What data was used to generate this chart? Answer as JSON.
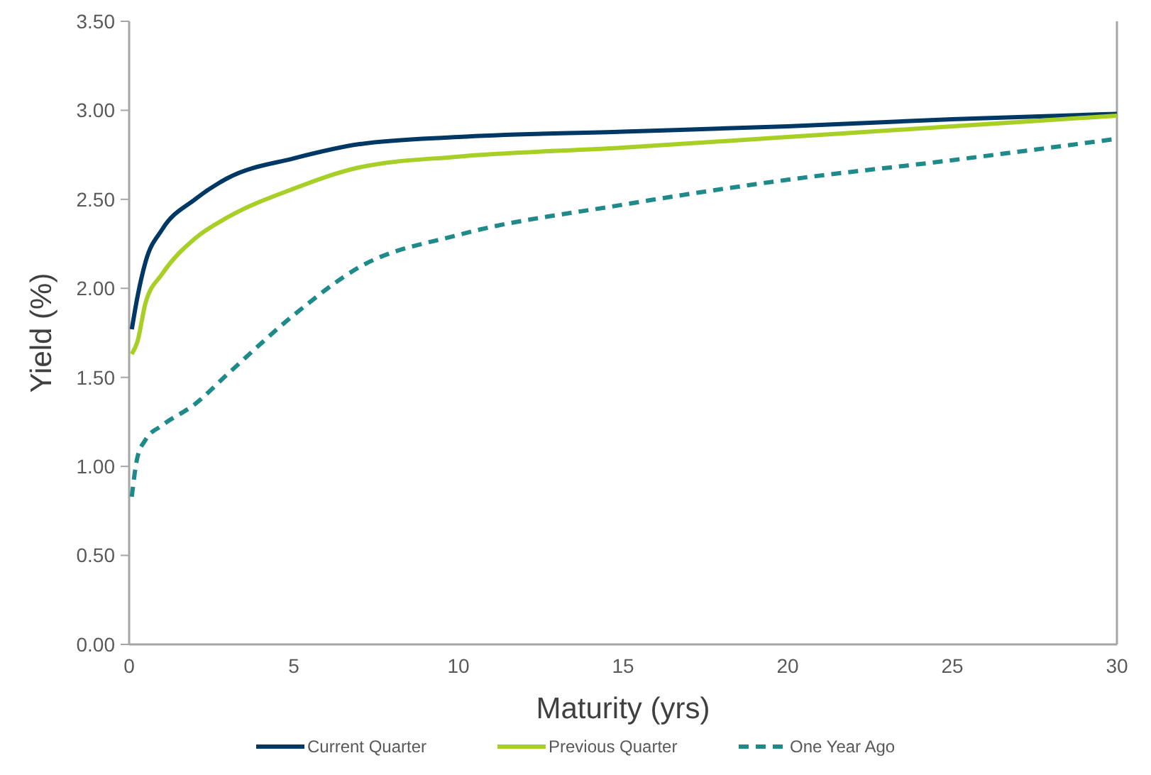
{
  "chart_data": {
    "type": "line",
    "xlabel": "Maturity (yrs)",
    "ylabel": "Yield (%)",
    "xlim": [
      0,
      30
    ],
    "xticks": [
      0,
      5,
      10,
      15,
      20,
      25,
      30
    ],
    "ylim": [
      0,
      3.5
    ],
    "yticks": [
      {
        "value": 0,
        "label": "0.00"
      },
      {
        "value": 0.5,
        "label": "0.50"
      },
      {
        "value": 1,
        "label": "1.00"
      },
      {
        "value": 1.5,
        "label": "1.50"
      },
      {
        "value": 2,
        "label": "2.00"
      },
      {
        "value": 2.5,
        "label": "2.50"
      },
      {
        "value": 3,
        "label": "3.00"
      },
      {
        "value": 3.5,
        "label": "3.50"
      }
    ],
    "grid": false,
    "legend": "bottom",
    "series": [
      {
        "name": "Current Quarter",
        "color": "#003865",
        "line_style": "solid",
        "x": [
          0.08,
          0.25,
          0.5,
          1,
          2,
          3,
          5,
          7,
          10,
          15,
          20,
          25,
          30
        ],
        "values": [
          1.77,
          1.95,
          2.15,
          2.33,
          2.5,
          2.62,
          2.73,
          2.81,
          2.85,
          2.88,
          2.91,
          2.95,
          2.98
        ]
      },
      {
        "name": "Previous Quarter",
        "color": "#a8cf26",
        "line_style": "solid",
        "x": [
          0.08,
          0.25,
          0.5,
          1,
          2,
          3,
          5,
          7,
          10,
          15,
          20,
          25,
          30
        ],
        "values": [
          1.63,
          1.7,
          1.92,
          2.08,
          2.28,
          2.4,
          2.56,
          2.68,
          2.74,
          2.79,
          2.85,
          2.91,
          2.97
        ]
      },
      {
        "name": "One Year Ago",
        "color": "#1f8a8a",
        "line_style": "dashed",
        "x": [
          0.08,
          0.25,
          0.5,
          1,
          2,
          3,
          5,
          7,
          10,
          15,
          20,
          25,
          30
        ],
        "values": [
          0.83,
          1.05,
          1.15,
          1.23,
          1.35,
          1.52,
          1.85,
          2.12,
          2.3,
          2.47,
          2.61,
          2.72,
          2.84
        ]
      }
    ]
  }
}
